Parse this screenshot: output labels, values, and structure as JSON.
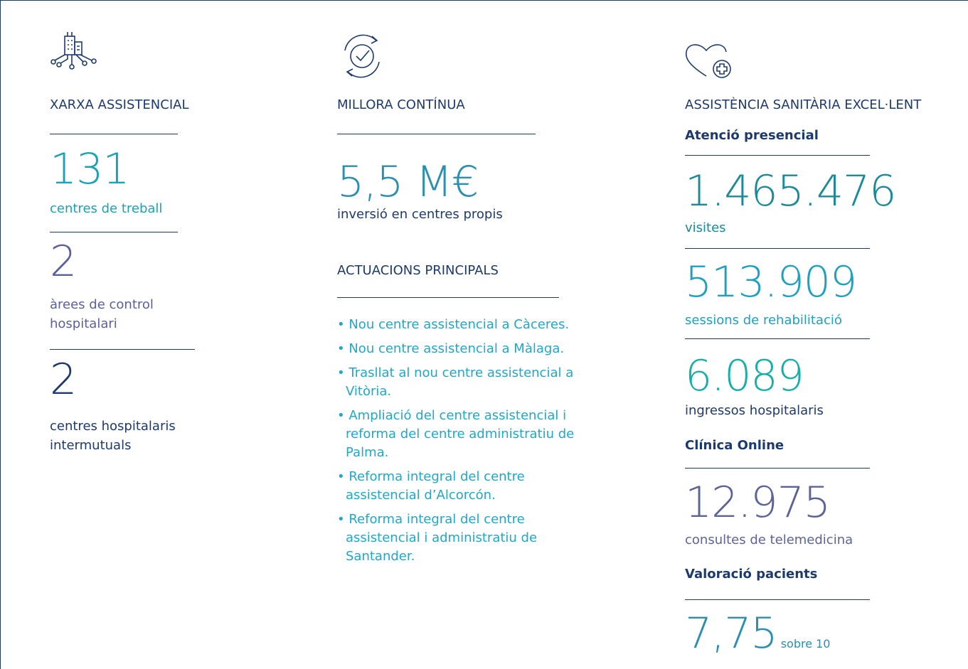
{
  "columns": [
    {
      "title": "XARXA ASSISTENCIAL",
      "stats": [
        {
          "value": "131",
          "label": "centres de treball"
        },
        {
          "value": "2",
          "label": "àrees de control hospitalari"
        },
        {
          "value": "2",
          "label": "centres hospitalaris intermutuals"
        }
      ]
    },
    {
      "title": "MILLORA CONTÍNUA",
      "stats": [
        {
          "value": "5,5 M€",
          "label": "inversió en centres propis"
        }
      ],
      "subtitle": "ACTUACIONS PRINCIPALS",
      "items": [
        "Nou centre assistencial a Càceres.",
        "Nou centre assistencial a Màlaga.",
        "Trasllat al nou centre assistencial a Vitòria.",
        "Ampliació del centre assistencial i reforma del centre administratiu de Palma.",
        "Reforma integral del centre assistencial d’Alcorcón.",
        "Reforma integral del centre assistencial i administratiu de Santander."
      ]
    },
    {
      "title": "ASSISTÈNCIA SANITÀRIA EXCEL·LENT",
      "groups": [
        {
          "heading": "Atenció presencial",
          "stats": [
            {
              "value": "1.465.476",
              "label": "visites"
            },
            {
              "value": "513.909",
              "label": "sessions de rehabilitació"
            },
            {
              "value": "6.089",
              "label": "ingressos hospitalaris"
            }
          ]
        },
        {
          "heading": "Clínica Online",
          "stats": [
            {
              "value": "12.975",
              "label": "consultes de telemedicina"
            }
          ]
        },
        {
          "heading": "Valoració pacients",
          "stats": [
            {
              "value": "7,75",
              "unit": "sobre 10"
            }
          ]
        }
      ]
    }
  ]
}
